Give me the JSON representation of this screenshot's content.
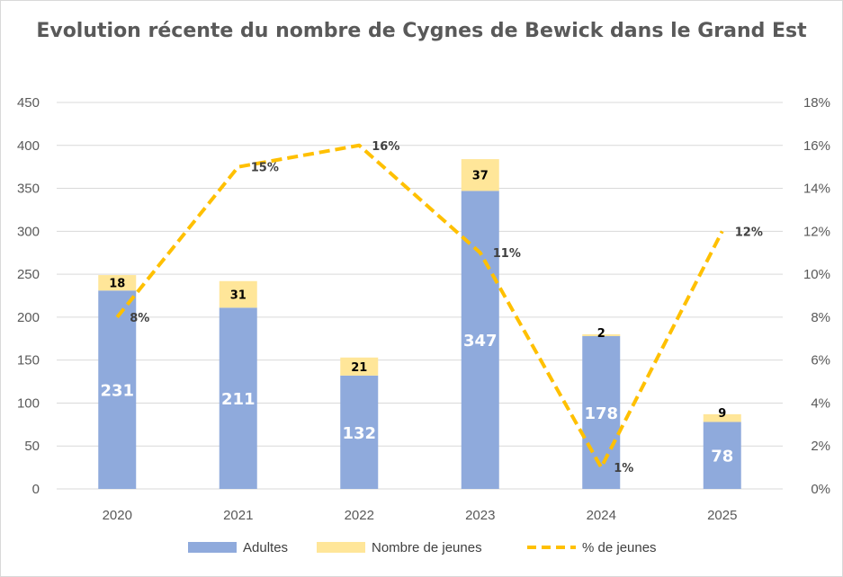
{
  "chart_data": {
    "type": "bar",
    "title": "Evolution récente du nombre de Cygnes de Bewick dans le Grand Est",
    "categories": [
      "2020",
      "2021",
      "2022",
      "2023",
      "2024",
      "2025"
    ],
    "series": [
      {
        "name": "Adultes",
        "kind": "stacked-bar",
        "color": "#8faadc",
        "values": [
          231,
          211,
          132,
          347,
          178,
          78
        ]
      },
      {
        "name": "Nombre de jeunes",
        "kind": "stacked-bar",
        "color": "#ffe699",
        "values": [
          18,
          31,
          21,
          37,
          2,
          9
        ]
      },
      {
        "name": "% de jeunes",
        "kind": "dashed-line",
        "axis": "secondary",
        "color": "#ffc000",
        "values": [
          8,
          15,
          16,
          11,
          1,
          12
        ],
        "labels": [
          "8%",
          "15%",
          "16%",
          "11%",
          "1%",
          "12%"
        ]
      }
    ],
    "y_primary": {
      "min": 0,
      "max": 450,
      "ticks": [
        "0",
        "50",
        "100",
        "150",
        "200",
        "250",
        "300",
        "350",
        "400",
        "450"
      ]
    },
    "y_secondary": {
      "min": 0,
      "max": 18,
      "ticks": [
        "0%",
        "2%",
        "4%",
        "6%",
        "8%",
        "10%",
        "12%",
        "14%",
        "16%",
        "18%"
      ]
    },
    "grid": true,
    "legend_position": "bottom"
  }
}
